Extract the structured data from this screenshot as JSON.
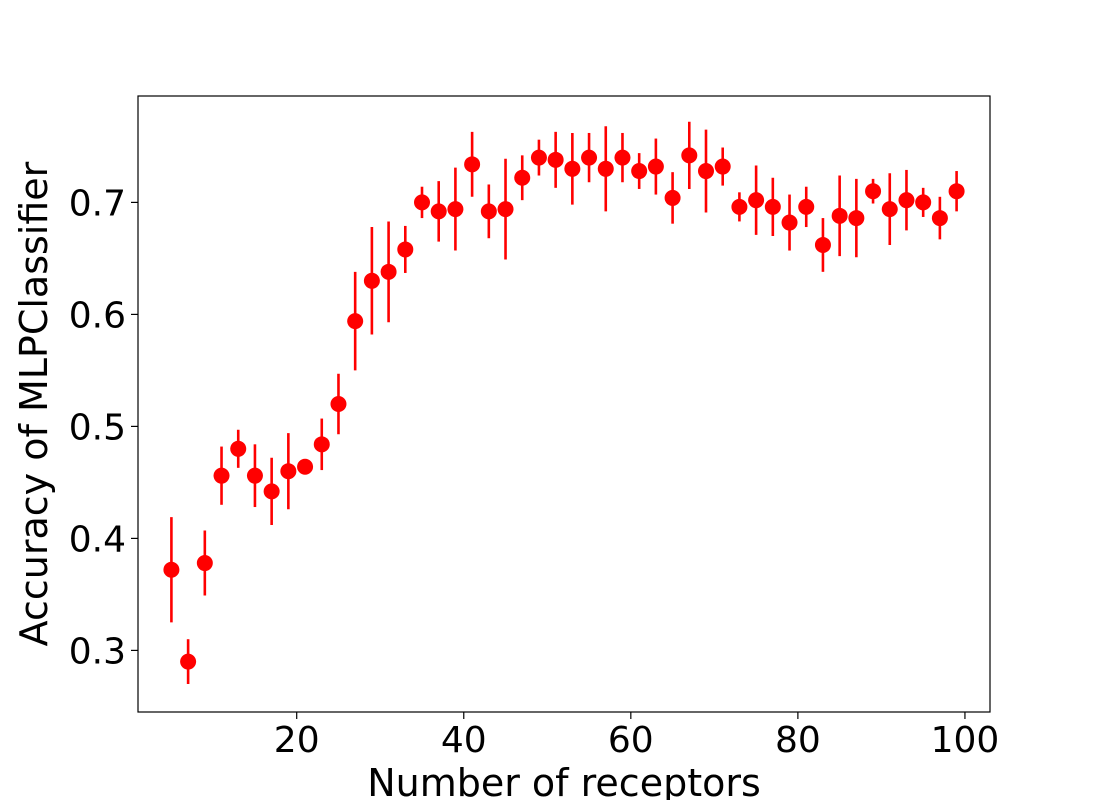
{
  "chart_data": {
    "type": "scatter",
    "title": "",
    "xlabel": "Number of receptors",
    "ylabel": "Accuracy of MLPClassifier",
    "xlim": [
      1,
      103
    ],
    "ylim": [
      0.245,
      0.795
    ],
    "xticks": [
      20,
      40,
      60,
      80,
      100
    ],
    "xtick_labels": [
      "20",
      "40",
      "60",
      "80",
      "100"
    ],
    "yticks": [
      0.3,
      0.4,
      0.5,
      0.6,
      0.7
    ],
    "ytick_labels": [
      "0.3",
      "0.4",
      "0.5",
      "0.6",
      "0.7"
    ],
    "grid": false,
    "legend": false,
    "marker_color": "#ff0000",
    "errorbar_color": "#ff0000",
    "series": [
      {
        "x": [
          5,
          7,
          9,
          11,
          13,
          15,
          17,
          19,
          21,
          23,
          25,
          27,
          29,
          31,
          33,
          35,
          37,
          39,
          41,
          43,
          45,
          47,
          49,
          51,
          53,
          55,
          57,
          59,
          61,
          63,
          65,
          67,
          69,
          71,
          73,
          75,
          77,
          79,
          81,
          83,
          85,
          87,
          89,
          91,
          93,
          95,
          97,
          99
        ],
        "y": [
          0.372,
          0.29,
          0.378,
          0.456,
          0.48,
          0.456,
          0.442,
          0.46,
          0.464,
          0.484,
          0.52,
          0.594,
          0.63,
          0.638,
          0.658,
          0.7,
          0.692,
          0.694,
          0.734,
          0.692,
          0.694,
          0.722,
          0.74,
          0.738,
          0.73,
          0.74,
          0.73,
          0.74,
          0.728,
          0.732,
          0.704,
          0.742,
          0.728,
          0.732,
          0.696,
          0.702,
          0.696,
          0.682,
          0.696,
          0.662,
          0.688,
          0.686,
          0.71,
          0.694,
          0.702,
          0.7,
          0.686,
          0.71
        ],
        "yerr": [
          0.047,
          0.02,
          0.029,
          0.026,
          0.017,
          0.028,
          0.03,
          0.034,
          0.004,
          0.023,
          0.027,
          0.044,
          0.048,
          0.045,
          0.021,
          0.014,
          0.027,
          0.037,
          0.029,
          0.024,
          0.045,
          0.02,
          0.016,
          0.025,
          0.032,
          0.022,
          0.038,
          0.022,
          0.016,
          0.025,
          0.023,
          0.03,
          0.037,
          0.017,
          0.013,
          0.031,
          0.026,
          0.025,
          0.018,
          0.024,
          0.036,
          0.035,
          0.011,
          0.032,
          0.027,
          0.013,
          0.019,
          0.018
        ]
      }
    ]
  }
}
